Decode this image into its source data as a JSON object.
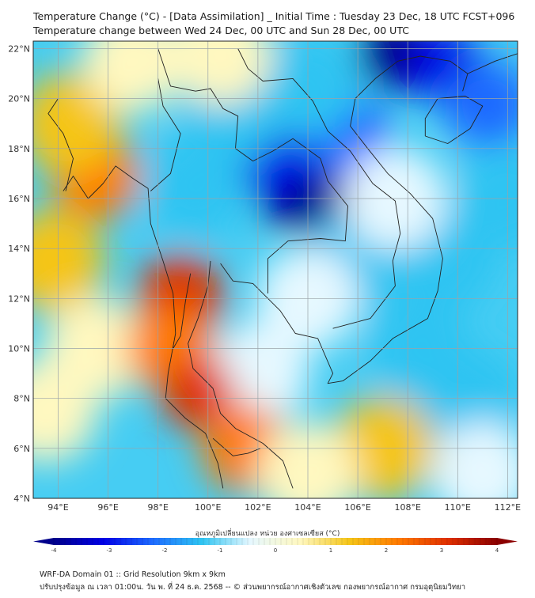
{
  "title": {
    "line1": "Temperature Change (°C) - [Data Assimilation] _ Initial Time : Tuesday 23 Dec, 18 UTC FCST+096",
    "line2": "Temperature change between Wed 24 Dec, 00 UTC and Sun 28 Dec, 00 UTC"
  },
  "map": {
    "lat_labels": [
      "4°N",
      "6°N",
      "8°N",
      "10°N",
      "12°N",
      "14°N",
      "16°N",
      "18°N",
      "20°N",
      "22°N"
    ],
    "lon_labels": [
      "94°E",
      "96°E",
      "98°E",
      "100°E",
      "102°E",
      "104°E",
      "106°E",
      "108°E",
      "110°E",
      "112°E"
    ],
    "lat_values": [
      4,
      6,
      8,
      10,
      12,
      14,
      16,
      18,
      20,
      22
    ],
    "lon_values": [
      94,
      96,
      98,
      100,
      102,
      104,
      106,
      108,
      110,
      112
    ],
    "lon_range": [
      93,
      112.4
    ],
    "lat_range": [
      4,
      22.3
    ],
    "field_cells": [
      {
        "lon": 103.5,
        "lat": 16.2,
        "v": -3.6
      },
      {
        "lon": 102.5,
        "lat": 17.5,
        "v": -3.0
      },
      {
        "lon": 104.8,
        "lat": 15.6,
        "v": -3.3
      },
      {
        "lon": 107.5,
        "lat": 21.8,
        "v": -3.4
      },
      {
        "lon": 109.5,
        "lat": 21.3,
        "v": -2.6
      },
      {
        "lon": 111.2,
        "lat": 19.8,
        "v": -2.1
      },
      {
        "lon": 101.0,
        "lat": 19.5,
        "v": -1.4
      },
      {
        "lon": 105.5,
        "lat": 18.5,
        "v": -1.7
      },
      {
        "lon": 104.0,
        "lat": 20.5,
        "v": -1.0
      },
      {
        "lon": 99.5,
        "lat": 16.5,
        "v": -0.9
      },
      {
        "lon": 106.0,
        "lat": 13.5,
        "v": -1.4
      },
      {
        "lon": 109.5,
        "lat": 13.5,
        "v": -1.2
      },
      {
        "lon": 104.0,
        "lat": 12.0,
        "v": -0.8
      },
      {
        "lon": 108.5,
        "lat": 10.0,
        "v": -1.0
      },
      {
        "lon": 110.5,
        "lat": 8.0,
        "v": -0.9
      },
      {
        "lon": 102.0,
        "lat": 9.0,
        "v": -0.6
      },
      {
        "lon": 95.5,
        "lat": 16.9,
        "v": 2.3
      },
      {
        "lon": 94.5,
        "lat": 19.0,
        "v": 1.1
      },
      {
        "lon": 93.8,
        "lat": 13.5,
        "v": 0.9
      },
      {
        "lon": 95.5,
        "lat": 10.0,
        "v": 0.7
      },
      {
        "lon": 98.9,
        "lat": 12.0,
        "v": 2.4
      },
      {
        "lon": 98.5,
        "lat": 10.0,
        "v": 1.8
      },
      {
        "lon": 99.6,
        "lat": 8.2,
        "v": 2.6
      },
      {
        "lon": 101.5,
        "lat": 6.0,
        "v": 1.8
      },
      {
        "lon": 107.0,
        "lat": 6.0,
        "v": 1.3
      },
      {
        "lon": 104.0,
        "lat": 5.0,
        "v": 0.6
      },
      {
        "lon": 97.0,
        "lat": 21.5,
        "v": 0.5
      },
      {
        "lon": 100.5,
        "lat": 21.8,
        "v": 0.4
      },
      {
        "lon": 93.5,
        "lat": 7.5,
        "v": 0.5
      },
      {
        "lon": 111.0,
        "lat": 5.0,
        "v": -0.4
      },
      {
        "lon": 107.5,
        "lat": 16.0,
        "v": -0.6
      },
      {
        "lon": 112.0,
        "lat": 16.0,
        "v": -1.0
      }
    ]
  },
  "colorbar": {
    "title": "อุณหภูมิเปลี่ยนแปลง หน่วย องศาเซลเซียส (°C)",
    "min": -4,
    "max": 4,
    "ticks": [
      "-4",
      "-3",
      "-2",
      "-1",
      "0",
      "1",
      "2",
      "3",
      "4"
    ],
    "colors": [
      "#00008b",
      "#0000e6",
      "#1e6bff",
      "#2ec4f2",
      "#e6f8ff",
      "#fff8c0",
      "#f5c518",
      "#ff7a00",
      "#e03000",
      "#8b0000"
    ]
  },
  "footer": {
    "line1": "WRF-DA Domain 01 :: Grid Resolution 9km x 9km",
    "line2": "ปรับปรุงข้อมูล ณ เวลา 01:00น. วัน พ. ที่ 24 ธ.ค. 2568 -- © ส่วนพยากรณ์อากาศเชิงตัวเลข กองพยากรณ์อากาศ กรมอุตุนิยมวิทยา"
  },
  "style": {
    "land_line_color": "#222222",
    "grid_color": "#9aa3a8"
  }
}
